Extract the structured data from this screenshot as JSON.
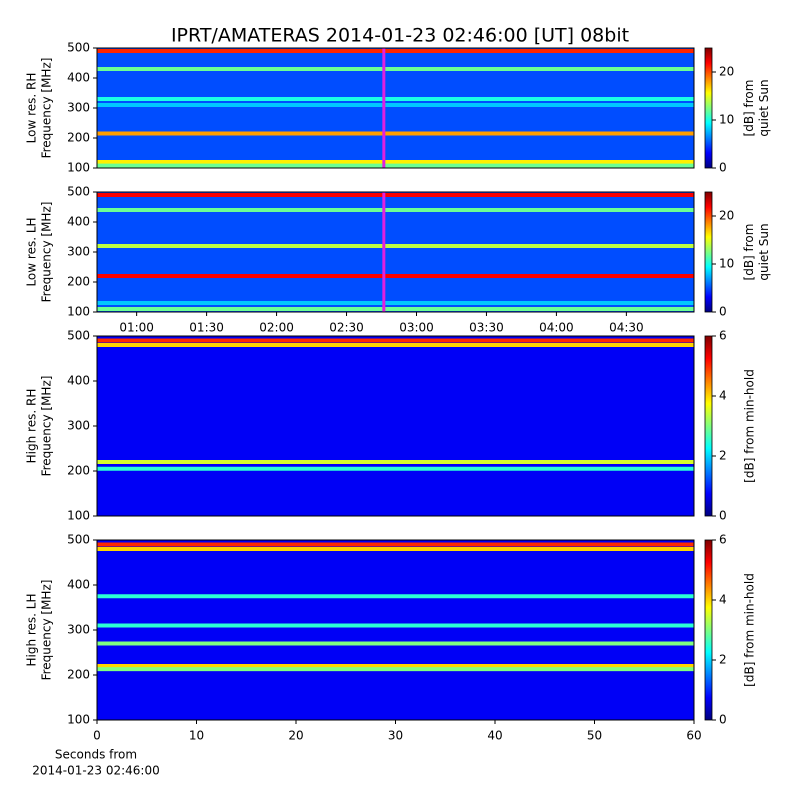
{
  "title": "IPRT/AMATERAS 2014-01-23 02:46:00 [UT]   08bit",
  "chart_data": [
    {
      "type": "spectrogram",
      "ylabel": [
        "Low res. RH",
        "Frequency [MHz]"
      ],
      "ylim": [
        100,
        500
      ],
      "yticks": [
        100,
        200,
        300,
        400,
        500
      ],
      "xlim": [
        43,
        299
      ],
      "colorbar": {
        "lim": [
          0,
          25
        ],
        "ticks": [
          0,
          10,
          20
        ],
        "label": [
          "[dB] from",
          "quiet Sun"
        ]
      },
      "background": 5,
      "bands": [
        {
          "freq": 490,
          "level": 21
        },
        {
          "freq": 430,
          "level": 12
        },
        {
          "freq": 330,
          "level": 10
        },
        {
          "freq": 310,
          "level": 8
        },
        {
          "freq": 215,
          "level": 18
        },
        {
          "freq": 120,
          "level": 16
        },
        {
          "freq": 108,
          "level": 12
        }
      ],
      "marker": {
        "value": 166,
        "color": "#e020e0"
      }
    },
    {
      "type": "spectrogram",
      "ylabel": [
        "Low res. LH",
        "Frequency [MHz]"
      ],
      "ylim": [
        100,
        500
      ],
      "yticks": [
        100,
        200,
        300,
        400,
        500
      ],
      "xlim": [
        43,
        299
      ],
      "xticks": [
        {
          "value": 60,
          "label": "01:00"
        },
        {
          "value": 90,
          "label": "01:30"
        },
        {
          "value": 120,
          "label": "02:00"
        },
        {
          "value": 150,
          "label": "02:30"
        },
        {
          "value": 180,
          "label": "03:00"
        },
        {
          "value": 210,
          "label": "03:30"
        },
        {
          "value": 240,
          "label": "04:00"
        },
        {
          "value": 270,
          "label": "04:30"
        }
      ],
      "colorbar": {
        "lim": [
          0,
          25
        ],
        "ticks": [
          0,
          10,
          20
        ],
        "label": [
          "[dB] from",
          "quiet Sun"
        ]
      },
      "background": 5,
      "bands": [
        {
          "freq": 490,
          "level": 22
        },
        {
          "freq": 440,
          "level": 12
        },
        {
          "freq": 320,
          "level": 14
        },
        {
          "freq": 220,
          "level": 22
        },
        {
          "freq": 130,
          "level": 8
        },
        {
          "freq": 110,
          "level": 12
        }
      ],
      "marker": {
        "value": 166,
        "color": "#e020e0"
      }
    },
    {
      "type": "spectrogram",
      "ylabel": [
        "High res. RH",
        "Frequency [MHz]"
      ],
      "ylim": [
        100,
        500
      ],
      "yticks": [
        100,
        200,
        300,
        400,
        500
      ],
      "xlim": [
        0,
        60
      ],
      "colorbar": {
        "lim": [
          0,
          6
        ],
        "ticks": [
          0,
          2,
          4,
          6
        ],
        "label": [
          "[dB] from min-hold"
        ]
      },
      "background": 0.7,
      "bands": [
        {
          "freq": 490,
          "level": 5
        },
        {
          "freq": 480,
          "level": 4
        },
        {
          "freq": 220,
          "level": 3.5
        },
        {
          "freq": 205,
          "level": 2.5
        }
      ]
    },
    {
      "type": "spectrogram",
      "ylabel": [
        "High res. LH",
        "Frequency [MHz]"
      ],
      "ylim": [
        100,
        500
      ],
      "yticks": [
        100,
        200,
        300,
        400,
        500
      ],
      "xlim": [
        0,
        60
      ],
      "xticks": [
        0,
        10,
        20,
        30,
        40,
        50,
        60
      ],
      "xlabel": [
        "Seconds from",
        "2014-01-23 02:46:00"
      ],
      "colorbar": {
        "lim": [
          0,
          6
        ],
        "ticks": [
          0,
          2,
          4,
          6
        ],
        "label": [
          "[dB] from min-hold"
        ]
      },
      "background": 0.7,
      "bands": [
        {
          "freq": 490,
          "level": 5
        },
        {
          "freq": 480,
          "level": 4
        },
        {
          "freq": 375,
          "level": 2.5
        },
        {
          "freq": 310,
          "level": 2.5
        },
        {
          "freq": 270,
          "level": 3
        },
        {
          "freq": 220,
          "level": 4
        },
        {
          "freq": 213,
          "level": 3
        }
      ]
    }
  ]
}
